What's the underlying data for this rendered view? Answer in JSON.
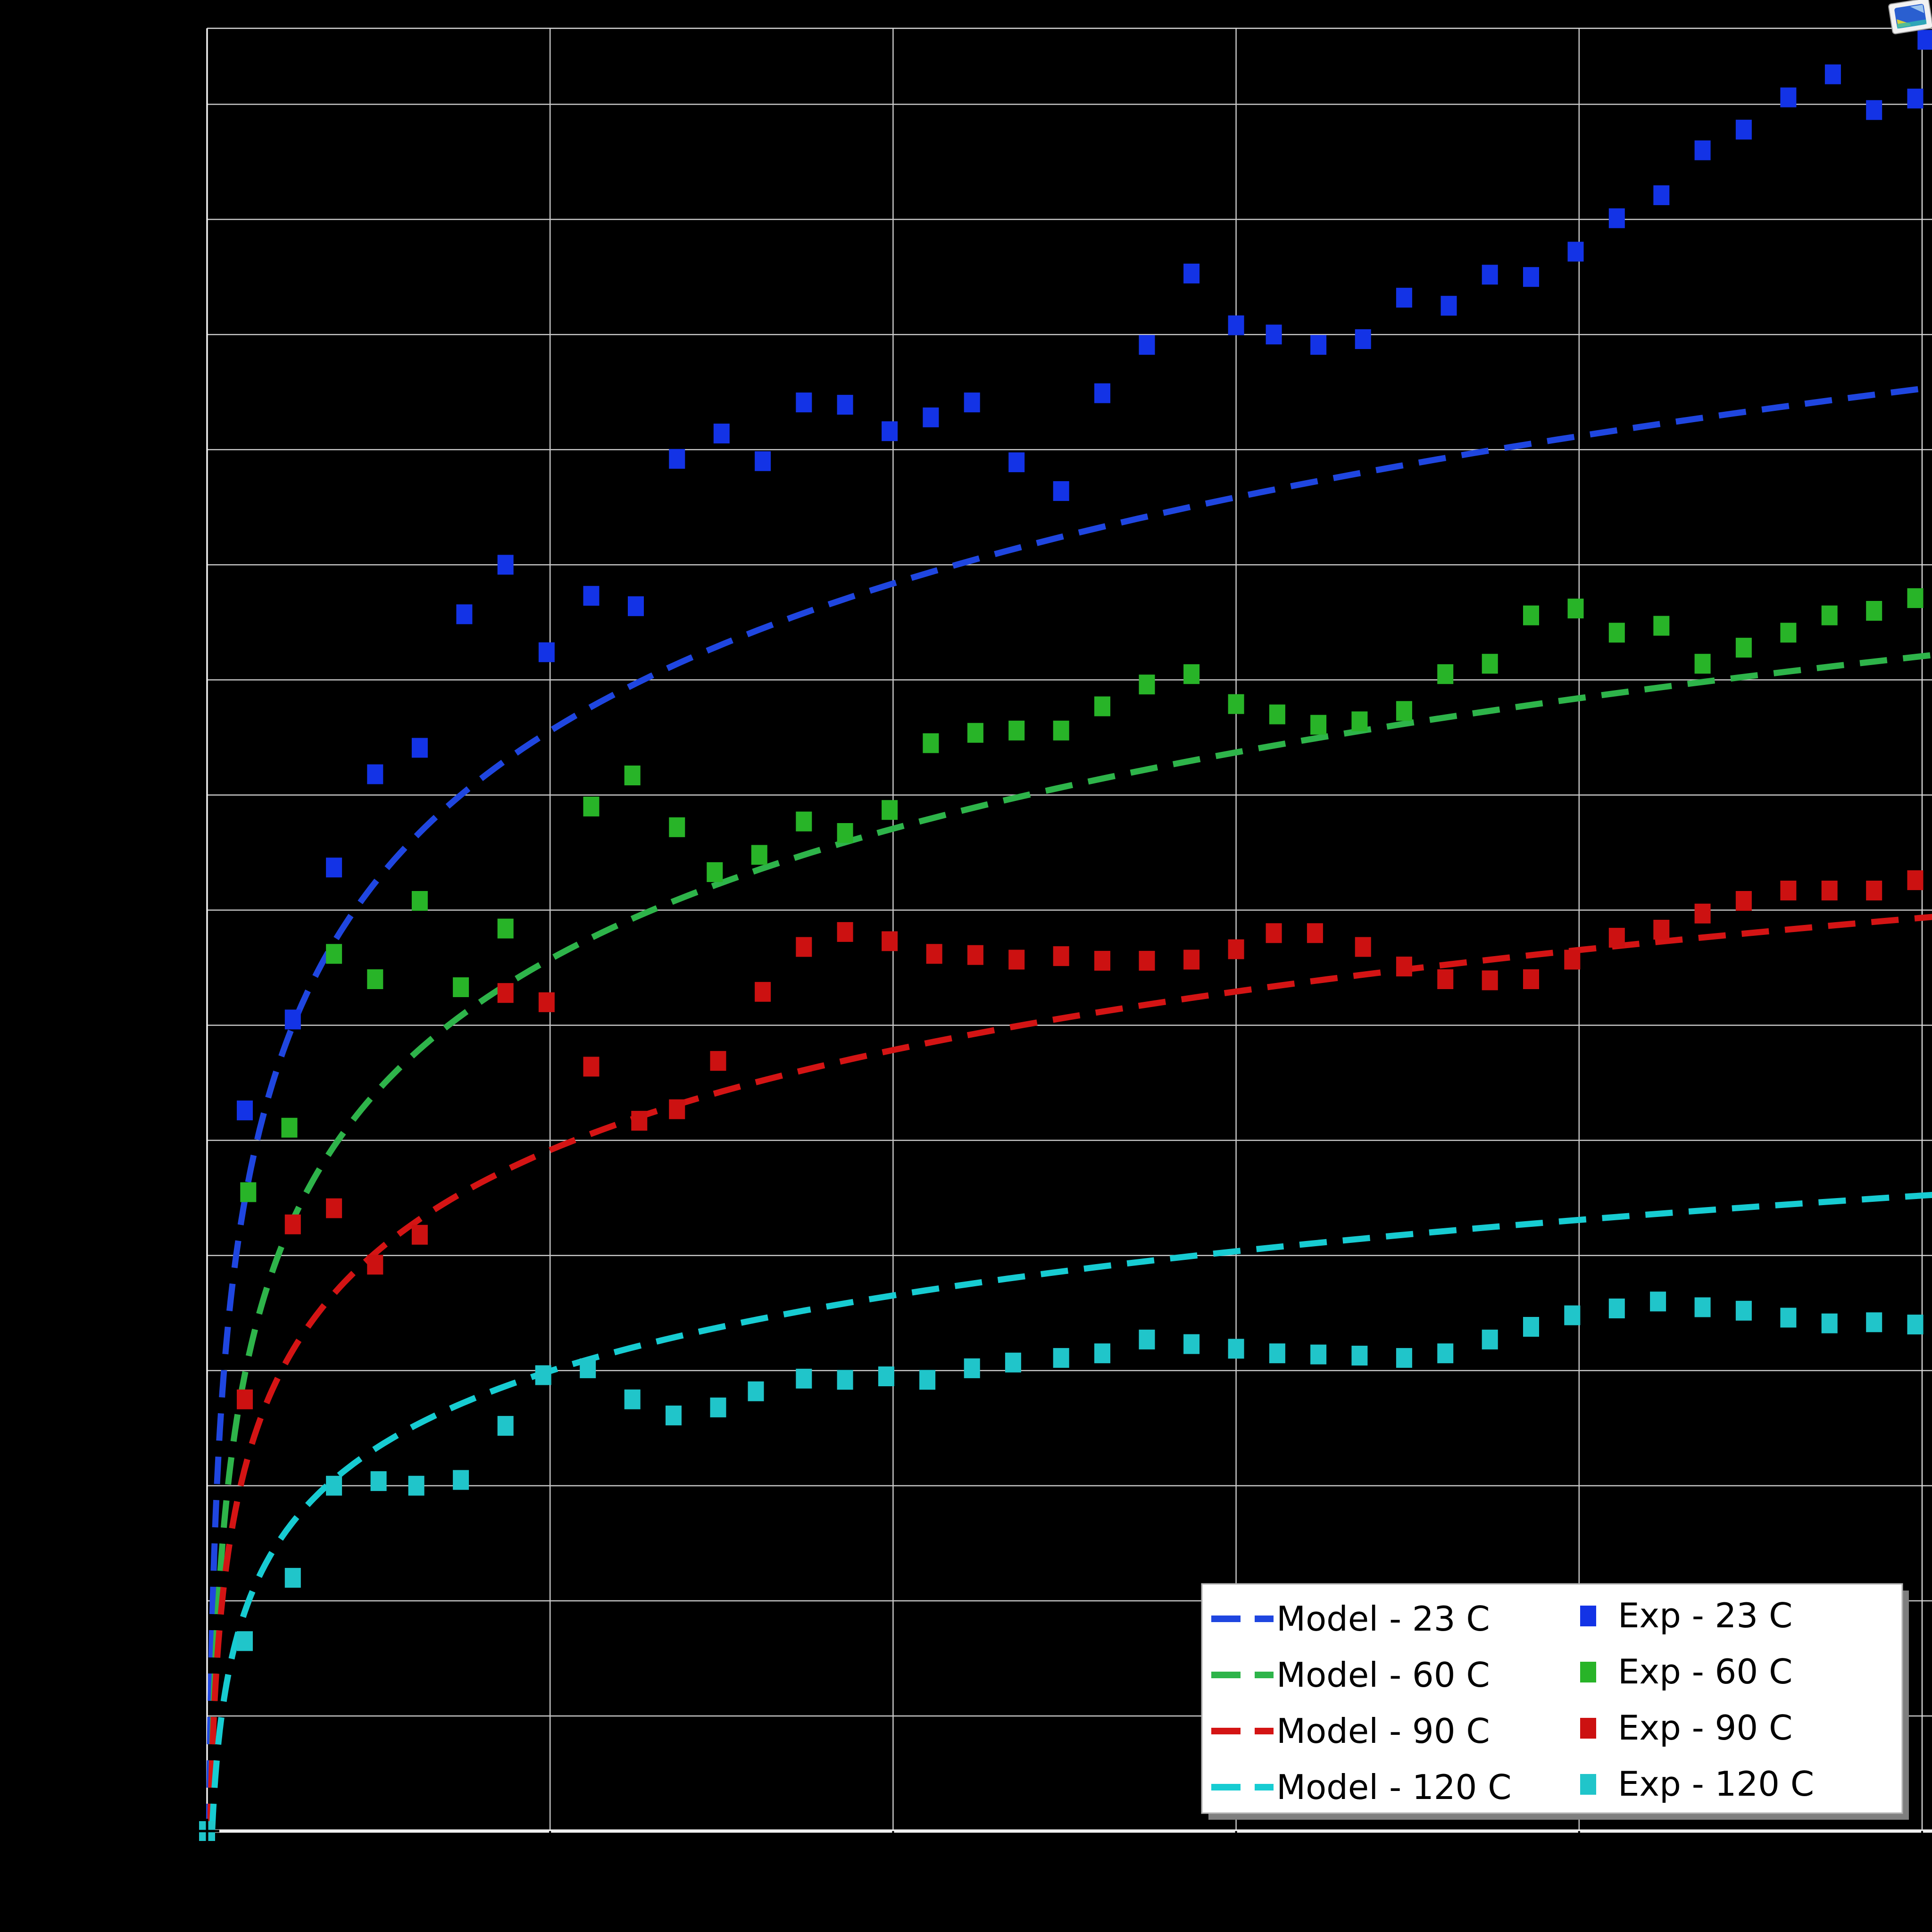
{
  "figure": {
    "background": "#000000",
    "grid_color": "#c9c9c9",
    "spine_color": "#f0f0f0",
    "tick_color": "#000000"
  },
  "legend": {
    "background": "#ffffff",
    "border_color": "#b3b3b3",
    "shadow_color": "#7f7f7f",
    "model_items": [
      {
        "label": "Model - 23 C",
        "series": 0
      },
      {
        "label": "Model - 60 C",
        "series": 1
      },
      {
        "label": "Model - 90 C",
        "series": 2
      },
      {
        "label": "Model - 120 C",
        "series": 3
      }
    ],
    "exp_items": [
      {
        "label": "Exp - 23 C",
        "series": 0
      },
      {
        "label": "Exp - 60 C",
        "series": 1
      },
      {
        "label": "Exp - 90 C",
        "series": 2
      },
      {
        "label": "Exp - 120 C",
        "series": 3
      }
    ]
  },
  "icon": {
    "name": "image-placeholder-icon"
  },
  "chart_data": {
    "type": "scatter",
    "title": "",
    "xlabel": "",
    "ylabel": "",
    "tick_labels_visible": false,
    "grid": true,
    "legend_position": "lower right",
    "xlim": [
      0,
      5.03
    ],
    "ylim": [
      0,
      15.66
    ],
    "x_gridlines": [
      1,
      2,
      3,
      4
    ],
    "y_gridlines": [
      1,
      2,
      3,
      4,
      5,
      6,
      7,
      8,
      9,
      10,
      11,
      12,
      13,
      14,
      15
    ],
    "colors": [
      "#1438e0",
      "#2eb42e",
      "#cc1414",
      "#1fc8ce"
    ],
    "model_curves": [
      {
        "name": "Model - 23 C",
        "color": "#1f46e0",
        "fn": "y = b*ln(x/a)",
        "b": 1.847,
        "a": 0.00566
      },
      {
        "name": "Model - 60 C",
        "color": "#2eb44a",
        "fn": "y = b*ln(x/a)",
        "b": 1.635,
        "a": 0.00973
      },
      {
        "name": "Model - 90 C",
        "color": "#d41414",
        "fn": "y = b*ln(x/a)",
        "b": 1.254,
        "a": 0.00894
      },
      {
        "name": "Model - 120 C",
        "color": "#17ccd2",
        "fn": "y = b*ln(x/a)",
        "b": 0.947,
        "a": 0.0147
      }
    ],
    "series": [
      {
        "name": "Exp - 23 C",
        "color": "#1333e6",
        "points": [
          [
            0,
            0
          ],
          [
            0.11,
            6.26
          ],
          [
            0.25,
            7.05
          ],
          [
            0.37,
            8.37
          ],
          [
            0.49,
            9.18
          ],
          [
            0.62,
            9.41
          ],
          [
            0.75,
            10.57
          ],
          [
            0.87,
            11.0
          ],
          [
            0.99,
            10.24
          ],
          [
            1.12,
            10.73
          ],
          [
            1.25,
            10.64
          ],
          [
            1.37,
            11.92
          ],
          [
            1.5,
            12.14
          ],
          [
            1.62,
            11.9
          ],
          [
            1.74,
            12.41
          ],
          [
            1.86,
            12.39
          ],
          [
            1.99,
            12.16
          ],
          [
            2.11,
            12.28
          ],
          [
            2.23,
            12.41
          ],
          [
            2.36,
            11.89
          ],
          [
            2.49,
            11.64
          ],
          [
            2.61,
            12.49
          ],
          [
            2.74,
            12.91
          ],
          [
            2.87,
            13.53
          ],
          [
            3.0,
            13.08
          ],
          [
            3.11,
            13.0
          ],
          [
            3.24,
            12.91
          ],
          [
            3.37,
            12.96
          ],
          [
            3.49,
            13.32
          ],
          [
            3.62,
            13.25
          ],
          [
            3.74,
            13.52
          ],
          [
            3.86,
            13.5
          ],
          [
            3.99,
            13.72
          ],
          [
            4.11,
            14.01
          ],
          [
            4.24,
            14.21
          ],
          [
            4.36,
            14.6
          ],
          [
            4.48,
            14.78
          ],
          [
            4.61,
            15.06
          ],
          [
            4.74,
            15.26
          ],
          [
            4.86,
            14.95
          ],
          [
            4.98,
            15.05
          ],
          [
            5.01,
            15.56
          ]
        ]
      },
      {
        "name": "Exp - 60 C",
        "color": "#28b428",
        "points": [
          [
            0,
            0
          ],
          [
            0.12,
            5.55
          ],
          [
            0.24,
            6.11
          ],
          [
            0.37,
            7.62
          ],
          [
            0.49,
            7.4
          ],
          [
            0.62,
            8.08
          ],
          [
            0.74,
            7.33
          ],
          [
            0.87,
            7.84
          ],
          [
            1.12,
            8.9
          ],
          [
            1.24,
            9.17
          ],
          [
            1.37,
            8.72
          ],
          [
            1.48,
            8.33
          ],
          [
            1.61,
            8.48
          ],
          [
            1.74,
            8.77
          ],
          [
            1.86,
            8.67
          ],
          [
            1.99,
            8.87
          ],
          [
            2.11,
            9.45
          ],
          [
            2.24,
            9.54
          ],
          [
            2.36,
            9.56
          ],
          [
            2.49,
            9.56
          ],
          [
            2.61,
            9.77
          ],
          [
            2.74,
            9.96
          ],
          [
            2.87,
            10.05
          ],
          [
            3.0,
            9.79
          ],
          [
            3.12,
            9.7
          ],
          [
            3.24,
            9.61
          ],
          [
            3.36,
            9.64
          ],
          [
            3.49,
            9.73
          ],
          [
            3.61,
            10.05
          ],
          [
            3.74,
            10.14
          ],
          [
            3.86,
            10.56
          ],
          [
            3.99,
            10.62
          ],
          [
            4.11,
            10.41
          ],
          [
            4.24,
            10.47
          ],
          [
            4.36,
            10.14
          ],
          [
            4.48,
            10.28
          ],
          [
            4.61,
            10.41
          ],
          [
            4.73,
            10.56
          ],
          [
            4.86,
            10.6
          ],
          [
            4.98,
            10.71
          ]
        ]
      },
      {
        "name": "Exp - 90 C",
        "color": "#cc1111",
        "points": [
          [
            0,
            0
          ],
          [
            0.11,
            3.75
          ],
          [
            0.25,
            5.27
          ],
          [
            0.37,
            5.41
          ],
          [
            0.49,
            4.92
          ],
          [
            0.62,
            5.18
          ],
          [
            0.87,
            7.28
          ],
          [
            0.99,
            7.2
          ],
          [
            1.12,
            6.64
          ],
          [
            1.26,
            6.17
          ],
          [
            1.37,
            6.27
          ],
          [
            1.49,
            6.69
          ],
          [
            1.62,
            7.29
          ],
          [
            1.74,
            7.68
          ],
          [
            1.86,
            7.81
          ],
          [
            1.99,
            7.73
          ],
          [
            2.12,
            7.62
          ],
          [
            2.24,
            7.61
          ],
          [
            2.36,
            7.57
          ],
          [
            2.49,
            7.6
          ],
          [
            2.61,
            7.56
          ],
          [
            2.74,
            7.56
          ],
          [
            2.87,
            7.57
          ],
          [
            3.0,
            7.66
          ],
          [
            3.11,
            7.8
          ],
          [
            3.23,
            7.8
          ],
          [
            3.37,
            7.68
          ],
          [
            3.49,
            7.51
          ],
          [
            3.61,
            7.4
          ],
          [
            3.74,
            7.39
          ],
          [
            3.86,
            7.4
          ],
          [
            3.98,
            7.57
          ],
          [
            4.11,
            7.76
          ],
          [
            4.24,
            7.83
          ],
          [
            4.36,
            7.97
          ],
          [
            4.48,
            8.08
          ],
          [
            4.61,
            8.17
          ],
          [
            4.73,
            8.17
          ],
          [
            4.86,
            8.17
          ],
          [
            4.98,
            8.26
          ]
        ]
      },
      {
        "name": "Exp - 120 C",
        "color": "#20c5ca",
        "points": [
          [
            0,
            0
          ],
          [
            0.11,
            1.65
          ],
          [
            0.25,
            2.2
          ],
          [
            0.37,
            3.0
          ],
          [
            0.5,
            3.04
          ],
          [
            0.61,
            3.0
          ],
          [
            0.74,
            3.05
          ],
          [
            0.87,
            3.52
          ],
          [
            0.98,
            3.96
          ],
          [
            1.11,
            4.02
          ],
          [
            1.24,
            3.75
          ],
          [
            1.36,
            3.61
          ],
          [
            1.49,
            3.68
          ],
          [
            1.6,
            3.82
          ],
          [
            1.74,
            3.93
          ],
          [
            1.86,
            3.92
          ],
          [
            1.98,
            3.95
          ],
          [
            2.1,
            3.92
          ],
          [
            2.23,
            4.02
          ],
          [
            2.35,
            4.07
          ],
          [
            2.49,
            4.11
          ],
          [
            2.61,
            4.15
          ],
          [
            2.74,
            4.27
          ],
          [
            2.87,
            4.23
          ],
          [
            3.0,
            4.19
          ],
          [
            3.12,
            4.15
          ],
          [
            3.24,
            4.14
          ],
          [
            3.36,
            4.13
          ],
          [
            3.49,
            4.11
          ],
          [
            3.61,
            4.15
          ],
          [
            3.74,
            4.27
          ],
          [
            3.86,
            4.38
          ],
          [
            3.98,
            4.48
          ],
          [
            4.11,
            4.54
          ],
          [
            4.23,
            4.6
          ],
          [
            4.36,
            4.55
          ],
          [
            4.48,
            4.52
          ],
          [
            4.61,
            4.46
          ],
          [
            4.73,
            4.41
          ],
          [
            4.86,
            4.42
          ],
          [
            4.98,
            4.4
          ]
        ]
      }
    ]
  }
}
